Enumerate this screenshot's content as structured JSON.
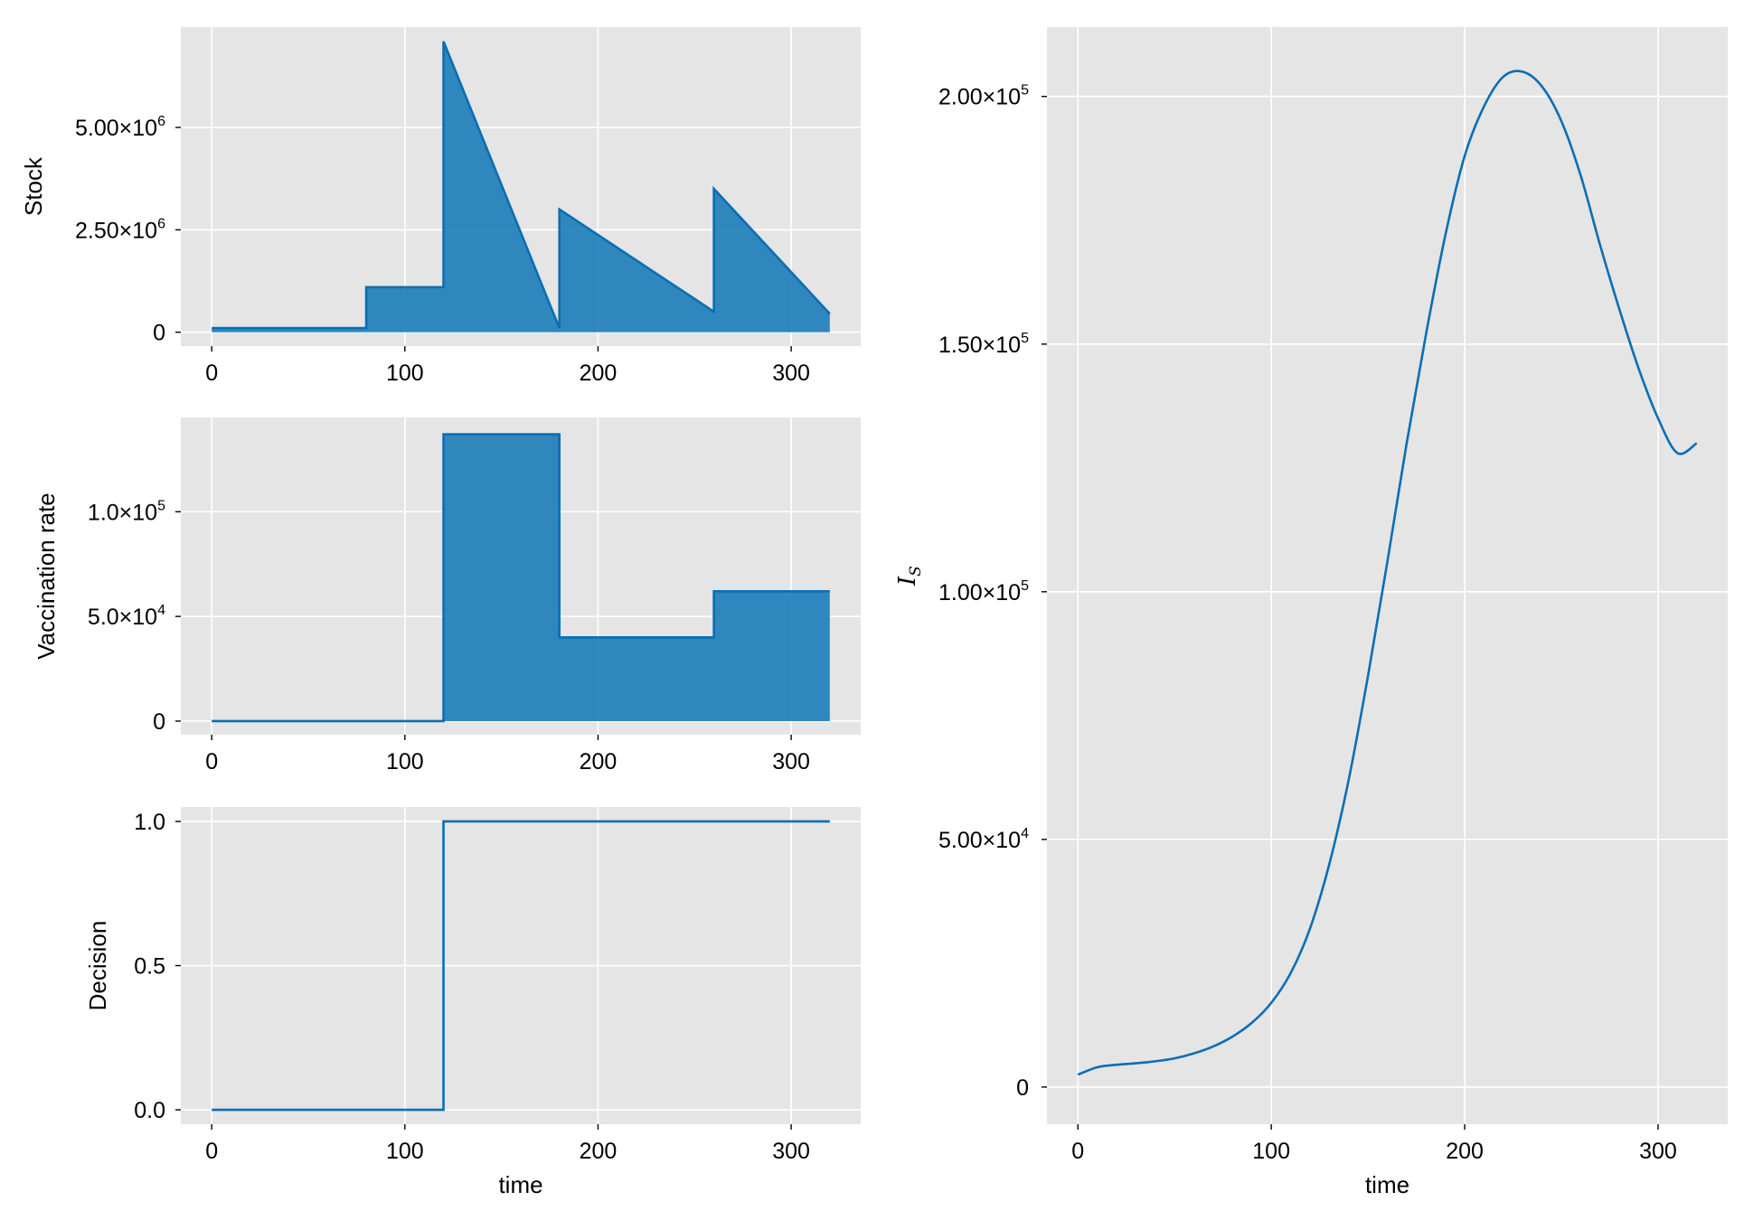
{
  "colors": {
    "background": "#e5e5e5",
    "grid": "#ffffff",
    "line": "#0a6eb4",
    "fill": "#1f7fba"
  },
  "chart_data": [
    {
      "id": "stock",
      "type": "area",
      "xlabel": "",
      "ylabel": "Stock",
      "xlim": [
        -16,
        336
      ],
      "ylim": [
        -340000,
        7450000
      ],
      "xticks": [
        0,
        100,
        200,
        300
      ],
      "xtick_labels": [
        "0",
        "100",
        "200",
        "300"
      ],
      "yticks": [
        0,
        2500000,
        5000000
      ],
      "ytick_labels": [
        [
          "0",
          ""
        ],
        [
          "2.50×10",
          "6"
        ],
        [
          "5.00×10",
          "6"
        ]
      ],
      "x": [
        0,
        80,
        80,
        120,
        120,
        180,
        180,
        260,
        260,
        320
      ],
      "y": [
        100000,
        100000,
        1100000,
        1100000,
        7100000,
        100000,
        3000000,
        500000,
        3500000,
        450000
      ],
      "baseline": 0
    },
    {
      "id": "vaccination",
      "type": "area",
      "xlabel": "",
      "ylabel": "Vaccination rate",
      "xlim": [
        -16,
        336
      ],
      "ylim": [
        -6500,
        145000
      ],
      "xticks": [
        0,
        100,
        200,
        300
      ],
      "xtick_labels": [
        "0",
        "100",
        "200",
        "300"
      ],
      "yticks": [
        0,
        50000,
        100000
      ],
      "ytick_labels": [
        [
          "0",
          ""
        ],
        [
          "5.0×10",
          "4"
        ],
        [
          "1.0×10",
          "5"
        ]
      ],
      "x": [
        0,
        120,
        120,
        180,
        180,
        260,
        260,
        320
      ],
      "y": [
        0,
        0,
        137000,
        137000,
        40000,
        40000,
        62000,
        62000
      ],
      "baseline": 0
    },
    {
      "id": "decision",
      "type": "line",
      "xlabel": "time",
      "ylabel": "Decision",
      "xlim": [
        -16,
        336
      ],
      "ylim": [
        -0.05,
        1.05
      ],
      "xticks": [
        0,
        100,
        200,
        300
      ],
      "xtick_labels": [
        "0",
        "100",
        "200",
        "300"
      ],
      "yticks": [
        0,
        0.5,
        1.0
      ],
      "ytick_labels": [
        [
          "0.0",
          ""
        ],
        [
          "0.5",
          ""
        ],
        [
          "1.0",
          ""
        ]
      ],
      "x": [
        0,
        120,
        120,
        320
      ],
      "y": [
        0,
        0,
        1,
        1
      ]
    },
    {
      "id": "infected",
      "type": "line",
      "xlabel": "time",
      "ylabel": [
        "I",
        "S"
      ],
      "xlim": [
        -16,
        336
      ],
      "ylim": [
        -7500,
        214000
      ],
      "xticks": [
        0,
        100,
        200,
        300
      ],
      "xtick_labels": [
        "0",
        "100",
        "200",
        "300"
      ],
      "yticks": [
        0,
        50000,
        100000,
        150000,
        200000
      ],
      "ytick_labels": [
        [
          "0",
          ""
        ],
        [
          "5.00×10",
          "4"
        ],
        [
          "1.00×10",
          "5"
        ],
        [
          "1.50×10",
          "5"
        ],
        [
          "2.00×10",
          "5"
        ]
      ],
      "x": [
        0,
        10,
        20,
        30,
        40,
        50,
        60,
        70,
        80,
        90,
        100,
        110,
        120,
        130,
        140,
        150,
        160,
        170,
        180,
        190,
        200,
        210,
        220,
        230,
        240,
        250,
        260,
        270,
        280,
        290,
        300,
        310,
        320
      ],
      "y": [
        2500,
        4000,
        4500,
        4800,
        5200,
        5800,
        6800,
        8200,
        10200,
        13000,
        17000,
        23000,
        32000,
        45000,
        62000,
        83000,
        106000,
        130000,
        152000,
        172000,
        188000,
        198000,
        204000,
        205000,
        202000,
        195000,
        184000,
        170000,
        157000,
        145000,
        135000,
        128000,
        130000
      ]
    }
  ]
}
